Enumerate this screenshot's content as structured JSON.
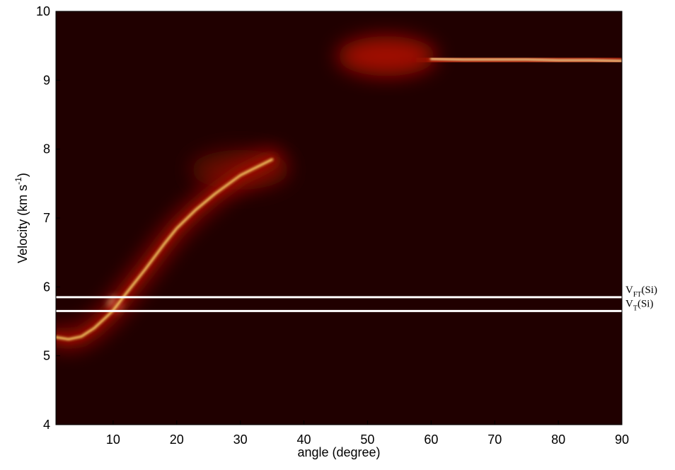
{
  "chart_data": {
    "type": "heatmap-ridges",
    "xlabel": "angle (degree)",
    "ylabel": {
      "text": "Velocity (km s",
      "sup": "-1",
      "end": ")"
    },
    "xlim": [
      1,
      90
    ],
    "xticks": [
      10,
      20,
      30,
      40,
      50,
      60,
      70,
      80,
      90
    ],
    "ylim": [
      4,
      10
    ],
    "yticks": [
      4,
      5,
      6,
      7,
      8,
      9,
      10
    ],
    "background": "#200000",
    "ridges": [
      {
        "x": [
          1,
          3,
          5,
          7,
          9,
          10,
          12,
          15,
          18,
          20,
          23,
          26,
          30,
          35
        ],
        "y": [
          5.27,
          5.24,
          5.28,
          5.4,
          5.57,
          5.66,
          5.9,
          6.25,
          6.62,
          6.85,
          7.12,
          7.35,
          7.62,
          7.85
        ],
        "glow": "#a01000",
        "core": "#ffe070"
      },
      {
        "x": [
          60,
          65,
          70,
          75,
          80,
          85,
          90
        ],
        "y": [
          9.31,
          9.3,
          9.3,
          9.3,
          9.29,
          9.29,
          9.28
        ],
        "glow": "#b01800",
        "core": "#fff0a0"
      }
    ],
    "hotspots": [
      {
        "x": 10.3,
        "y": 5.75,
        "color": "#fff8c0"
      },
      {
        "x": 53,
        "y": 9.35,
        "color": "#a01000"
      },
      {
        "x": 30,
        "y": 7.7,
        "color": "#601000"
      }
    ],
    "hlines": [
      {
        "value": 5.85,
        "label": {
          "base": "V",
          "sub": "FT",
          "rest": "(Si)"
        },
        "color": "#ffffff"
      },
      {
        "value": 5.65,
        "label": {
          "base": "V",
          "sub": "T",
          "rest": "(Si)"
        },
        "color": "#ffffff"
      }
    ]
  }
}
